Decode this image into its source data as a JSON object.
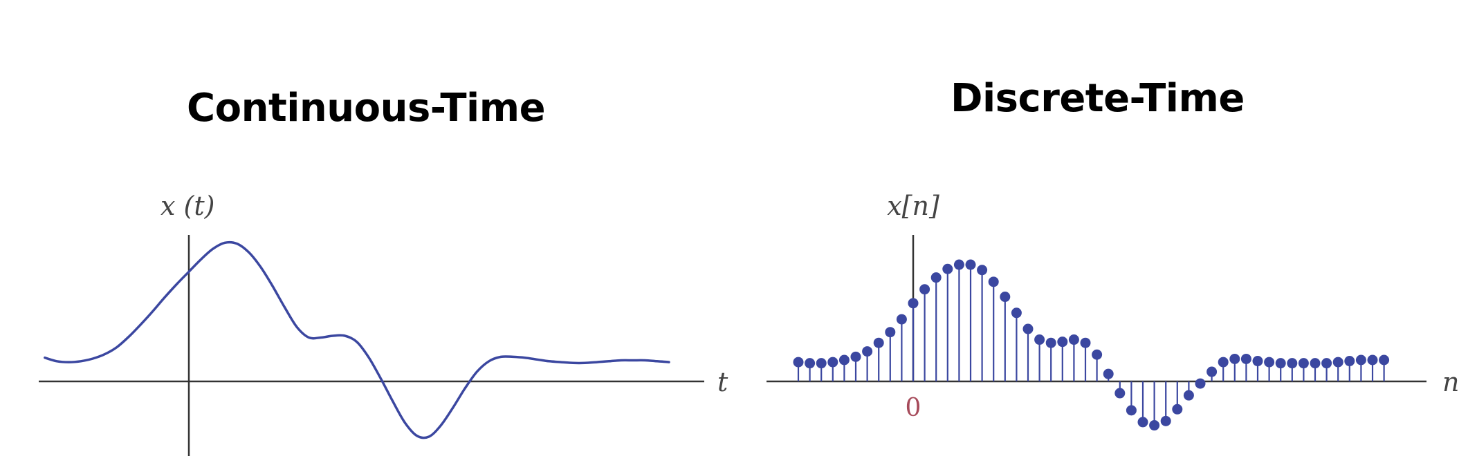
{
  "continuous": {
    "title": "Continuous-Time",
    "y_label": "x (t)",
    "x_label": "t"
  },
  "discrete": {
    "title": "Discrete-Time",
    "y_label": "x[n]",
    "x_label": "n",
    "origin_label": "0"
  },
  "colors": {
    "signal": "#3b47a0",
    "axis": "#333333",
    "origin": "#a64a5a"
  },
  "chart_data": [
    {
      "type": "line",
      "title": "Continuous-Time",
      "xlabel": "t",
      "ylabel": "x (t)",
      "grid": false,
      "series": [
        {
          "x": [
            -6,
            -5.5,
            -5,
            -4.5,
            -4,
            -3.5,
            -3,
            -2.5,
            -2,
            -1.5,
            -1,
            -0.5,
            0,
            0.5,
            1,
            1.5,
            2,
            2.5,
            3,
            3.5,
            4,
            4.5,
            5,
            5.5,
            6,
            6.5,
            7,
            7.5,
            8,
            8.5,
            9,
            9.5,
            10,
            10.5,
            11,
            11.5,
            12,
            12.5,
            13,
            13.5,
            14,
            14.5,
            15,
            15.5,
            16,
            16.5,
            17,
            17.5,
            18,
            18.5,
            19,
            19.5,
            20
          ],
          "values": [
            0.27,
            0.23,
            0.22,
            0.23,
            0.26,
            0.31,
            0.39,
            0.51,
            0.65,
            0.8,
            0.96,
            1.11,
            1.25,
            1.39,
            1.51,
            1.58,
            1.57,
            1.47,
            1.3,
            1.08,
            0.84,
            0.62,
            0.5,
            0.5,
            0.52,
            0.52,
            0.45,
            0.27,
            0.03,
            -0.23,
            -0.47,
            -0.62,
            -0.63,
            -0.5,
            -0.3,
            -0.08,
            0.11,
            0.23,
            0.28,
            0.28,
            0.27,
            0.25,
            0.23,
            0.22,
            0.21,
            0.21,
            0.22,
            0.23,
            0.24,
            0.24,
            0.24,
            0.23,
            0.22
          ]
        }
      ]
    },
    {
      "type": "scatter",
      "title": "Discrete-Time",
      "xlabel": "n",
      "ylabel": "x[n]",
      "grid": false,
      "series": [
        {
          "x": [
            -10,
            -9,
            -8,
            -7,
            -6,
            -5,
            -4,
            -3,
            -2,
            -1,
            0,
            1,
            2,
            3,
            4,
            5,
            6,
            7,
            8,
            9,
            10,
            11,
            12,
            13,
            14,
            15,
            16,
            17,
            18,
            19,
            20,
            21,
            22,
            23,
            24,
            25,
            26,
            27,
            28,
            29,
            30,
            31,
            32,
            33,
            34,
            35,
            36,
            37,
            38,
            39,
            40,
            41
          ],
          "values": [
            0.18,
            0.17,
            0.17,
            0.18,
            0.2,
            0.23,
            0.28,
            0.36,
            0.46,
            0.58,
            0.73,
            0.86,
            0.97,
            1.05,
            1.09,
            1.09,
            1.04,
            0.93,
            0.79,
            0.64,
            0.49,
            0.39,
            0.36,
            0.37,
            0.39,
            0.36,
            0.25,
            0.07,
            -0.11,
            -0.27,
            -0.38,
            -0.41,
            -0.37,
            -0.26,
            -0.13,
            -0.02,
            0.09,
            0.18,
            0.21,
            0.21,
            0.19,
            0.18,
            0.17,
            0.17,
            0.17,
            0.17,
            0.17,
            0.18,
            0.19,
            0.2,
            0.2,
            0.2
          ]
        }
      ]
    }
  ]
}
